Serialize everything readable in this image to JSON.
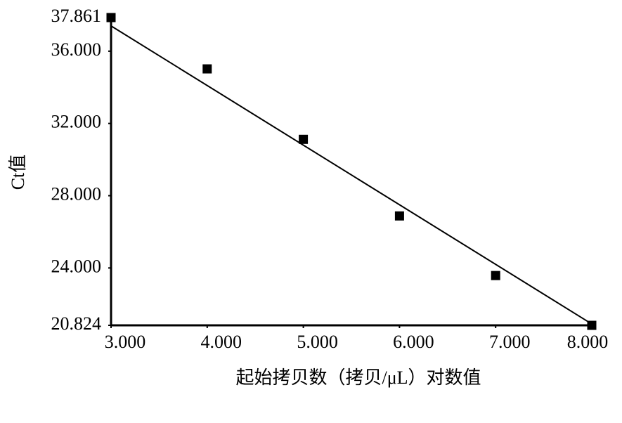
{
  "chart_data": {
    "type": "scatter",
    "x_label": "起始拷贝数（拷贝/μL）对数值",
    "y_label": "Ct值",
    "series": [
      {
        "x": [
          3,
          4,
          5,
          6,
          7,
          8
        ],
        "values": [
          37.861,
          35.02,
          31.12,
          26.88,
          23.58,
          20.824
        ],
        "color": "#000000"
      }
    ],
    "fit": {
      "x": [
        3,
        8
      ],
      "values": [
        37.4,
        20.9
      ],
      "color": "#000000"
    },
    "xlim": [
      3,
      8
    ],
    "ylim": [
      20.824,
      37.861
    ],
    "xticks": [
      {
        "value": 3,
        "label": "3.000"
      },
      {
        "value": 4,
        "label": "4.000"
      },
      {
        "value": 5,
        "label": "5.000"
      },
      {
        "value": 6,
        "label": "6.000"
      },
      {
        "value": 7,
        "label": "7.000"
      },
      {
        "value": 8,
        "label": "8.000"
      }
    ],
    "yticks": [
      {
        "value": 20.824,
        "label": "20.824"
      },
      {
        "value": 24,
        "label": "24.000"
      },
      {
        "value": 28,
        "label": "28.000"
      },
      {
        "value": 32,
        "label": "32.000"
      },
      {
        "value": 36,
        "label": "36.000"
      },
      {
        "value": 37.861,
        "label": "37.861"
      }
    ]
  }
}
